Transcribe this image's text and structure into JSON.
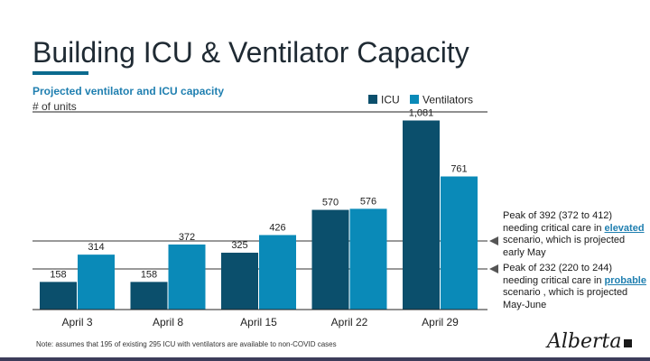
{
  "page": {
    "title": "Building ICU & Ventilator Capacity",
    "subtitle": "Projected ventilator and ICU capacity",
    "units_label": "# of units",
    "footnote": "Note: assumes that 195 of existing 295 ICU with ventilators are available to non-COVID cases",
    "logo_text": "Alberta"
  },
  "annotations": [
    {
      "value": 392,
      "before": "Peak of 392 (372 to 412) needing critical care in ",
      "keyword": "elevated",
      "after": " scenario, which is projected early May"
    },
    {
      "value": 232,
      "before": "Peak of 232 (220 to 244) needing critical care in ",
      "keyword": "probable",
      "after": " scenario , which is projected May-June"
    }
  ],
  "colors": {
    "icu": "#0b4f6c",
    "ventilators": "#0a8ab8",
    "accent": "#0b6a8e"
  },
  "chart_data": {
    "type": "bar",
    "categories": [
      "April 3",
      "April 8",
      "April 15",
      "April 22",
      "April 29"
    ],
    "series": [
      {
        "name": "ICU",
        "values": [
          158,
          158,
          325,
          570,
          1081
        ],
        "labels": [
          "158",
          "158",
          "325",
          "570",
          "1,081"
        ]
      },
      {
        "name": "Ventilators",
        "values": [
          314,
          372,
          426,
          576,
          761
        ],
        "labels": [
          "314",
          "372",
          "426",
          "576",
          "761"
        ]
      }
    ],
    "reference_lines": [
      392,
      232
    ],
    "ylim": [
      0,
      1130
    ],
    "legend": "top-right"
  }
}
